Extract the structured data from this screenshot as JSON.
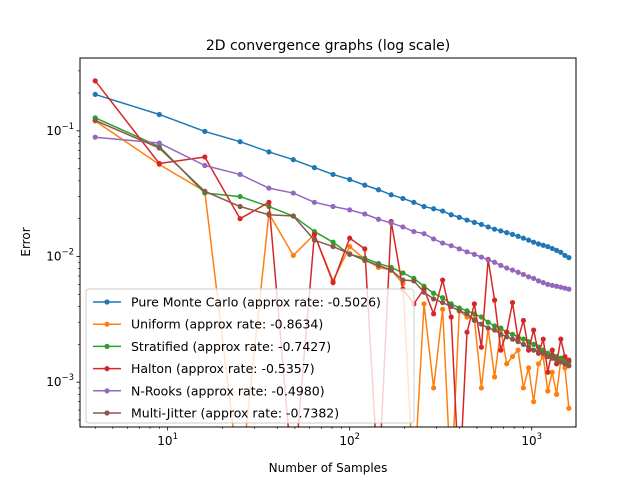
{
  "chart_data": {
    "type": "line",
    "title": "2D convergence graphs (log scale)",
    "xlabel": "Number of Samples",
    "ylabel": "Error",
    "xscale": "log",
    "yscale": "log",
    "xlim": [
      3.3,
      1750
    ],
    "ylim": [
      0.00044,
      0.38
    ],
    "x_major_ticks": [
      {
        "value": 10,
        "base": "10",
        "exp": "1"
      },
      {
        "value": 100,
        "base": "10",
        "exp": "2"
      },
      {
        "value": 1000,
        "base": "10",
        "exp": "3"
      }
    ],
    "y_major_ticks": [
      {
        "value": 0.001,
        "base": "10",
        "exp": "−3"
      },
      {
        "value": 0.01,
        "base": "10",
        "exp": "−2"
      },
      {
        "value": 0.1,
        "base": "10",
        "exp": "−1"
      }
    ],
    "grid": false,
    "legend_position": "lower-left",
    "x": [
      4,
      9,
      16,
      25,
      36,
      49,
      64,
      81,
      100,
      121,
      144,
      169,
      196,
      225,
      256,
      289,
      324,
      361,
      400,
      441,
      484,
      529,
      576,
      625,
      676,
      729,
      784,
      841,
      900,
      961,
      1024,
      1089,
      1156,
      1225,
      1296,
      1369,
      1444,
      1521,
      1600
    ],
    "series": [
      {
        "name": "Pure Monte Carlo (approx rate: -0.5026)",
        "color": "#1f77b4",
        "values": [
          0.195,
          0.135,
          0.099,
          0.082,
          0.068,
          0.059,
          0.051,
          0.045,
          0.041,
          0.037,
          0.034,
          0.031,
          0.029,
          0.027,
          0.025,
          0.024,
          0.023,
          0.0215,
          0.0205,
          0.0195,
          0.0187,
          0.018,
          0.0172,
          0.0165,
          0.016,
          0.0155,
          0.015,
          0.0145,
          0.014,
          0.0135,
          0.013,
          0.0126,
          0.0123,
          0.012,
          0.0116,
          0.0112,
          0.0108,
          0.0102,
          0.0098
        ]
      },
      {
        "name": "Uniform (approx rate: -0.8634)",
        "color": "#ff7f0e",
        "values": [
          0.12,
          0.054,
          0.033,
          0.00015,
          0.022,
          0.0102,
          0.015,
          0.0064,
          0.012,
          0.0095,
          0.0082,
          0.0078,
          0.0061,
          0.00015,
          0.0042,
          0.0009,
          0.0038,
          0.00015,
          0.0037,
          0.0033,
          0.0032,
          0.0009,
          0.0027,
          0.0011,
          0.0026,
          0.0014,
          0.0016,
          0.0018,
          0.0009,
          0.0013,
          0.0007,
          0.0014,
          0.0016,
          0.00085,
          0.0012,
          0.0008,
          0.0015,
          0.0013,
          0.00062
        ]
      },
      {
        "name": "Stratified (approx rate: -0.7427)",
        "color": "#2ca02c",
        "values": [
          0.127,
          0.075,
          0.032,
          0.03,
          0.025,
          0.021,
          0.0158,
          0.013,
          0.0104,
          0.0097,
          0.0088,
          0.0082,
          0.0074,
          0.0067,
          0.0058,
          0.0051,
          0.0047,
          0.0042,
          0.0039,
          0.0037,
          0.0035,
          0.0033,
          0.003,
          0.0028,
          0.0027,
          0.0025,
          0.0024,
          0.0023,
          0.0022,
          0.0021,
          0.002,
          0.0019,
          0.0018,
          0.0017,
          0.00165,
          0.0016,
          0.00155,
          0.0015,
          0.00145
        ]
      },
      {
        "name": "Halton (approx rate: -0.5357)",
        "color": "#d62728",
        "values": [
          0.25,
          0.055,
          0.062,
          0.02,
          0.027,
          0.00015,
          0.015,
          0.0062,
          0.014,
          0.0115,
          0.00015,
          0.019,
          0.0055,
          0.0042,
          0.0055,
          0.0035,
          0.0065,
          0.0033,
          0.00015,
          0.0025,
          0.0042,
          0.0019,
          0.0095,
          0.0045,
          0.0018,
          0.0025,
          0.0043,
          0.0022,
          0.0031,
          0.0018,
          0.0026,
          0.0017,
          0.0022,
          0.0012,
          0.0018,
          0.0014,
          0.0022,
          0.0016,
          0.0015
        ]
      },
      {
        "name": "N-Rooks (approx rate: -0.4980)",
        "color": "#9467bd",
        "values": [
          0.089,
          0.08,
          0.053,
          0.045,
          0.035,
          0.032,
          0.027,
          0.025,
          0.0235,
          0.0218,
          0.0198,
          0.0185,
          0.0172,
          0.0158,
          0.0152,
          0.0138,
          0.0128,
          0.0122,
          0.0115,
          0.0109,
          0.0104,
          0.0099,
          0.0094,
          0.009,
          0.0085,
          0.0081,
          0.0078,
          0.0075,
          0.0072,
          0.0069,
          0.0067,
          0.0064,
          0.0062,
          0.006,
          0.0059,
          0.0058,
          0.0057,
          0.0056,
          0.0055
        ]
      },
      {
        "name": "Multi-Jitter (approx rate: -0.7382)",
        "color": "#8c564b",
        "values": [
          0.121,
          0.073,
          0.033,
          0.025,
          0.0215,
          0.021,
          0.0135,
          0.012,
          0.0105,
          0.0093,
          0.0085,
          0.0078,
          0.0065,
          0.0064,
          0.0052,
          0.0046,
          0.0043,
          0.004,
          0.0037,
          0.0035,
          0.0031,
          0.0029,
          0.0027,
          0.0026,
          0.0024,
          0.0023,
          0.0022,
          0.0021,
          0.002,
          0.0019,
          0.0018,
          0.00175,
          0.0017,
          0.0016,
          0.00155,
          0.0015,
          0.00145,
          0.0014,
          0.00135
        ]
      }
    ]
  }
}
